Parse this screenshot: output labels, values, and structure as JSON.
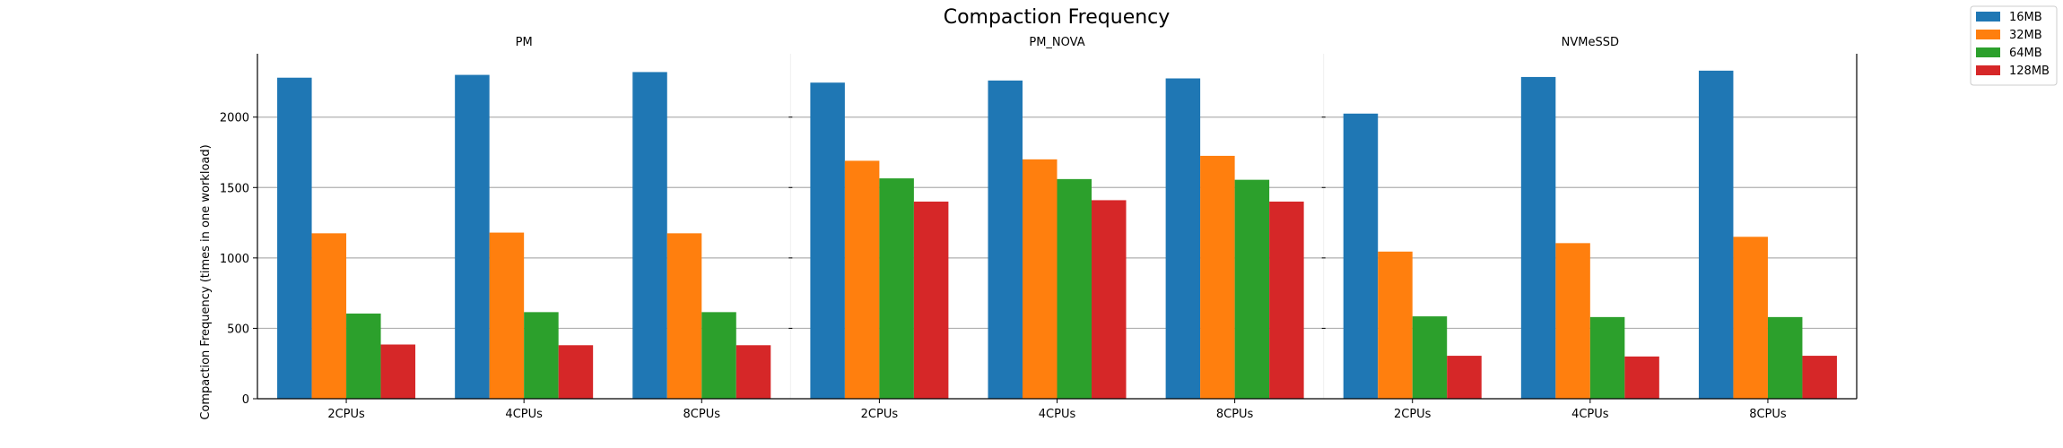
{
  "chart_data": {
    "type": "bar",
    "title": "Compaction Frequency",
    "ylabel": "Compaction Frequency (times in one workload)",
    "xlabel": "",
    "ylim": [
      0,
      2450
    ],
    "yticks": [
      0,
      500,
      1000,
      1500,
      2000
    ],
    "grid": "horizontal",
    "legend_position": "top-right",
    "legend": [
      {
        "name": "16MB",
        "color": "#1f77b4"
      },
      {
        "name": "32MB",
        "color": "#ff7f0e"
      },
      {
        "name": "64MB",
        "color": "#2ca02c"
      },
      {
        "name": "128MB",
        "color": "#d62728"
      }
    ],
    "panels": [
      {
        "title": "PM",
        "categories": [
          "2CPUs",
          "4CPUs",
          "8CPUs"
        ],
        "series": [
          {
            "name": "16MB",
            "values": [
              2280,
              2300,
              2320
            ]
          },
          {
            "name": "32MB",
            "values": [
              1175,
              1180,
              1175
            ]
          },
          {
            "name": "64MB",
            "values": [
              605,
              615,
              615
            ]
          },
          {
            "name": "128MB",
            "values": [
              385,
              380,
              380
            ]
          }
        ]
      },
      {
        "title": "PM_NOVA",
        "categories": [
          "2CPUs",
          "4CPUs",
          "8CPUs"
        ],
        "series": [
          {
            "name": "16MB",
            "values": [
              2245,
              2260,
              2275
            ]
          },
          {
            "name": "32MB",
            "values": [
              1690,
              1700,
              1725
            ]
          },
          {
            "name": "64MB",
            "values": [
              1565,
              1560,
              1555
            ]
          },
          {
            "name": "128MB",
            "values": [
              1400,
              1410,
              1400
            ]
          }
        ]
      },
      {
        "title": "NVMeSSD",
        "categories": [
          "2CPUs",
          "4CPUs",
          "8CPUs"
        ],
        "series": [
          {
            "name": "16MB",
            "values": [
              2025,
              2285,
              2330
            ]
          },
          {
            "name": "32MB",
            "values": [
              1045,
              1105,
              1150
            ]
          },
          {
            "name": "64MB",
            "values": [
              585,
              580,
              580
            ]
          },
          {
            "name": "128MB",
            "values": [
              305,
              300,
              305
            ]
          }
        ]
      }
    ]
  }
}
